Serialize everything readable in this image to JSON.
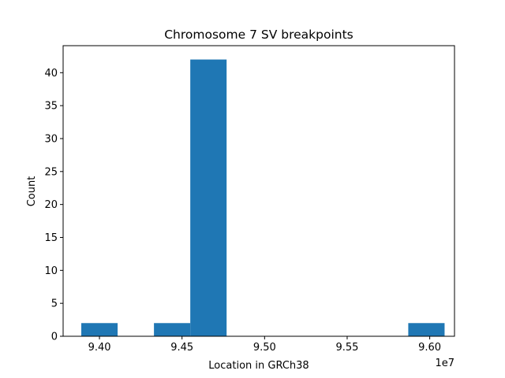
{
  "chart_data": {
    "type": "bar",
    "title": "Chromosome 7 SV breakpoints",
    "xlabel": "Location in GRCh38",
    "ylabel": "Count",
    "x_offset_label": "1e7",
    "bar_color": "#1f77b4",
    "xlim": [
      93780000,
      96150000
    ],
    "ylim": [
      0,
      44.1
    ],
    "x_ticks": [
      {
        "value": 94000000,
        "label": "9.40"
      },
      {
        "value": 94500000,
        "label": "9.45"
      },
      {
        "value": 95000000,
        "label": "9.50"
      },
      {
        "value": 95500000,
        "label": "9.55"
      },
      {
        "value": 96000000,
        "label": "9.60"
      }
    ],
    "y_ticks": [
      {
        "value": 0,
        "label": "0"
      },
      {
        "value": 5,
        "label": "5"
      },
      {
        "value": 10,
        "label": "10"
      },
      {
        "value": 15,
        "label": "15"
      },
      {
        "value": 20,
        "label": "20"
      },
      {
        "value": 25,
        "label": "25"
      },
      {
        "value": 30,
        "label": "30"
      },
      {
        "value": 35,
        "label": "35"
      },
      {
        "value": 40,
        "label": "40"
      }
    ],
    "bins": [
      {
        "start": 93890000,
        "end": 94110000,
        "count": 2
      },
      {
        "start": 94110000,
        "end": 94330000,
        "count": 0
      },
      {
        "start": 94330000,
        "end": 94550000,
        "count": 2
      },
      {
        "start": 94550000,
        "end": 94770000,
        "count": 42
      },
      {
        "start": 94770000,
        "end": 94990000,
        "count": 0
      },
      {
        "start": 94990000,
        "end": 95210000,
        "count": 0
      },
      {
        "start": 95210000,
        "end": 95430000,
        "count": 0
      },
      {
        "start": 95430000,
        "end": 95650000,
        "count": 0
      },
      {
        "start": 95650000,
        "end": 95870000,
        "count": 0
      },
      {
        "start": 95870000,
        "end": 96090000,
        "count": 2
      }
    ],
    "grid": false,
    "legend": "none"
  }
}
